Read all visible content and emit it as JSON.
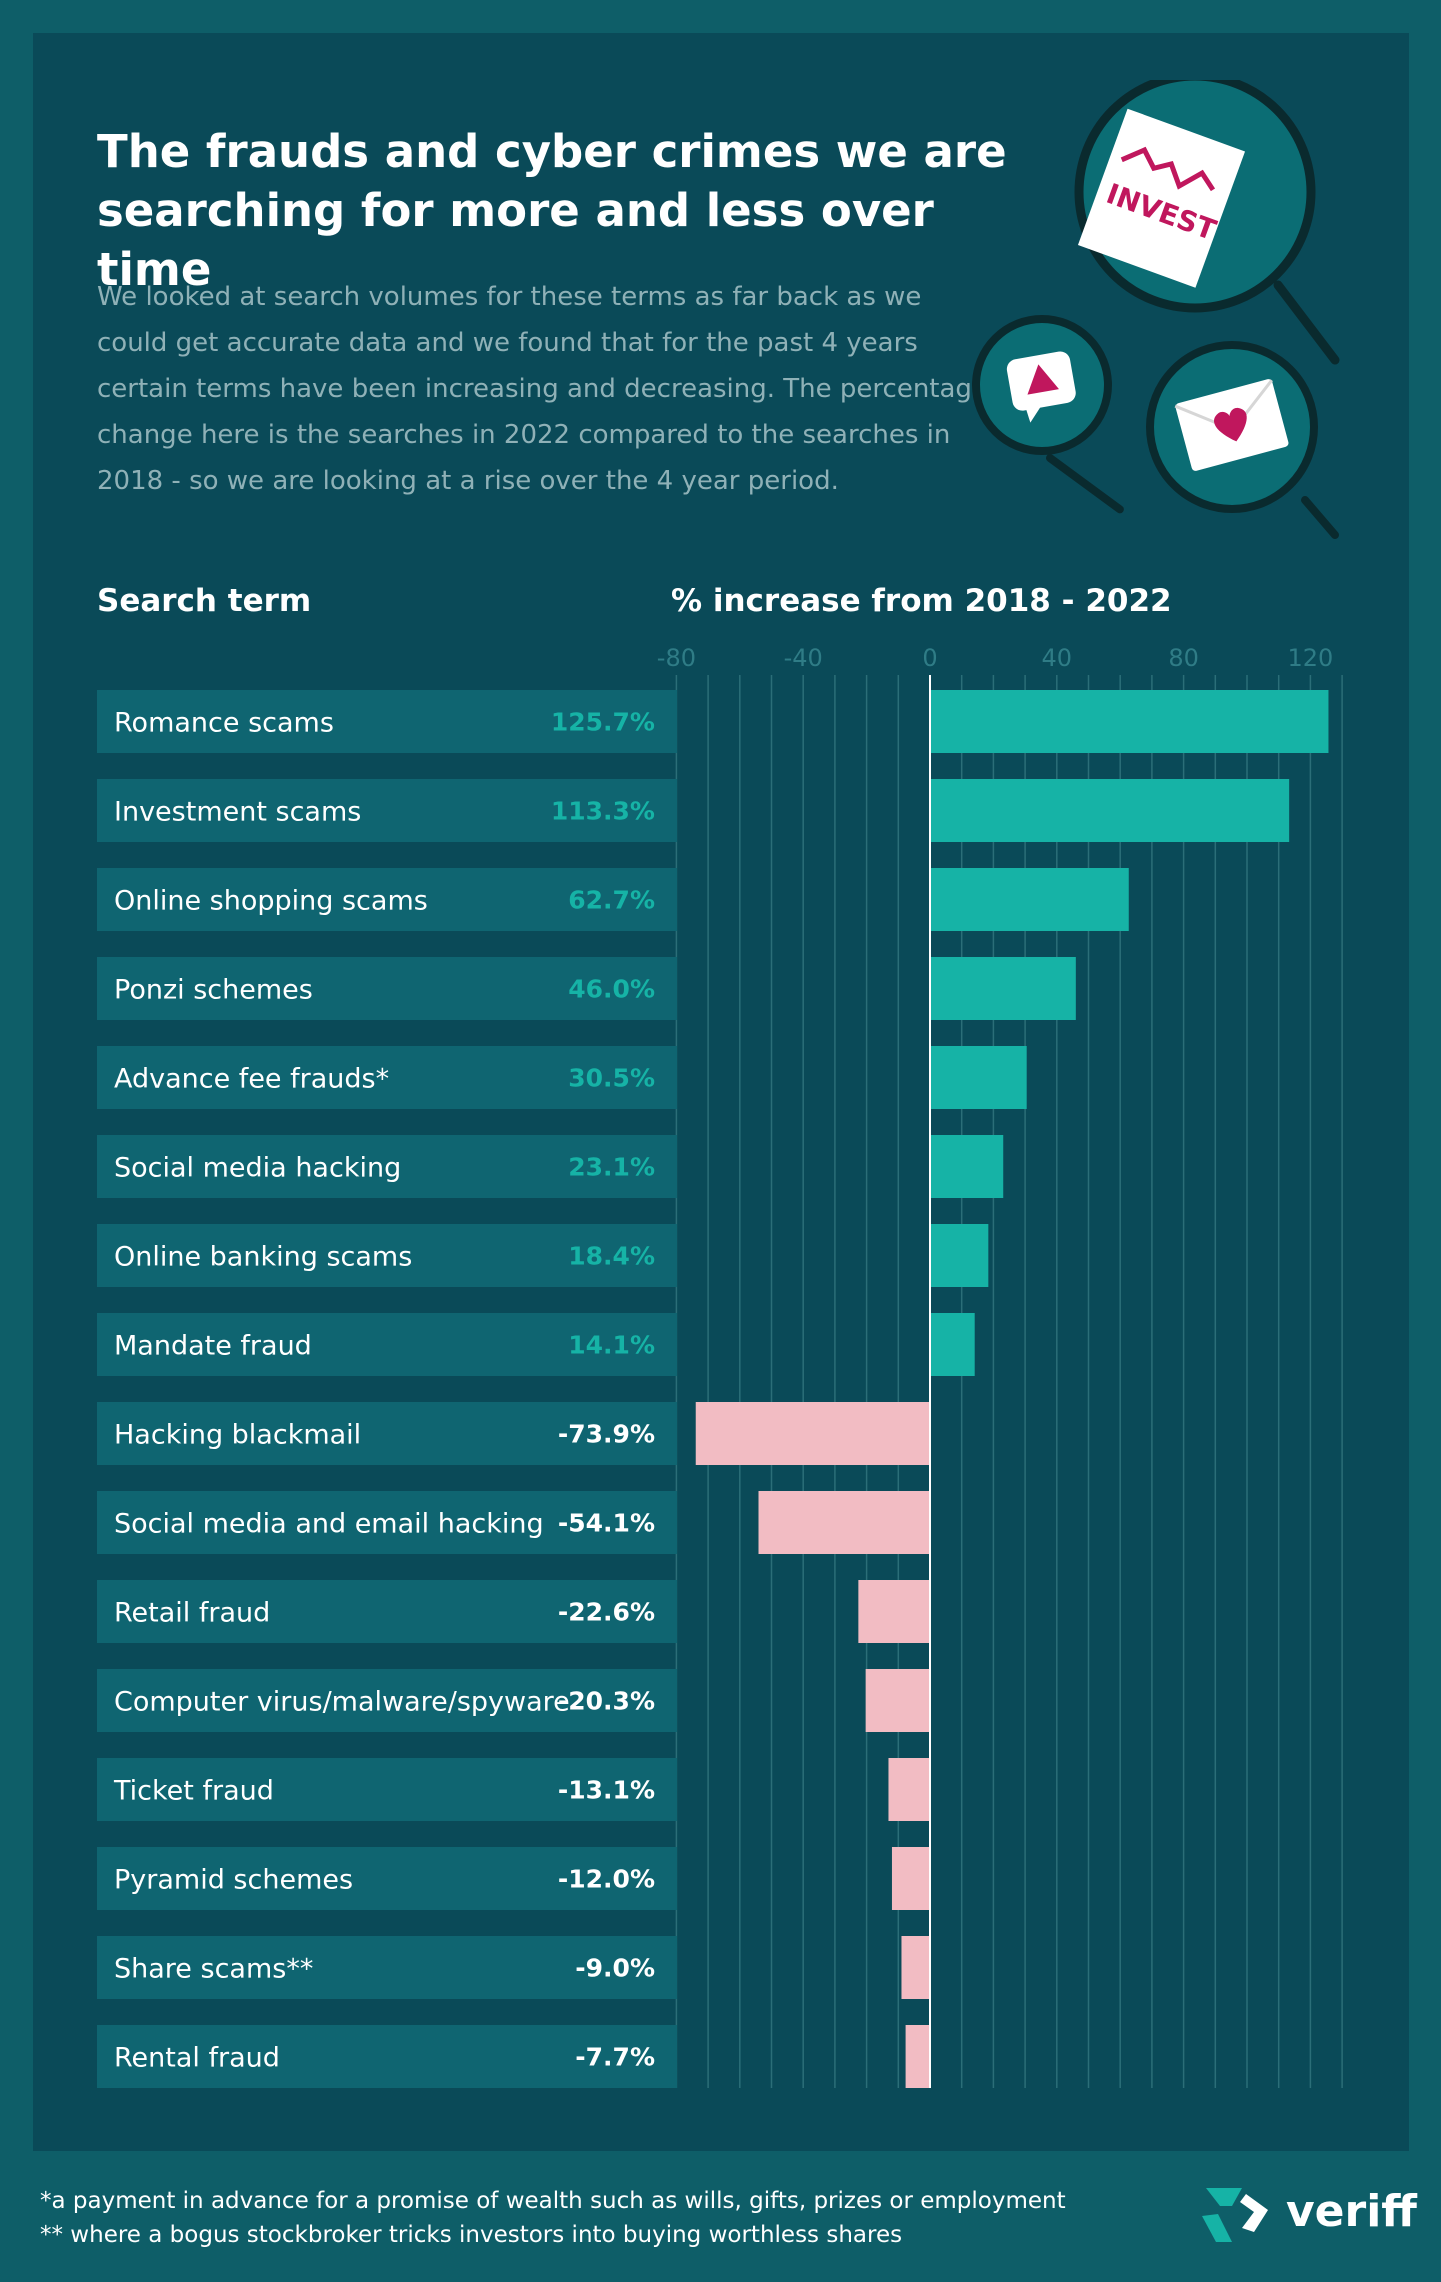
{
  "title": "The frauds and cyber crimes we are searching for more and less over time",
  "intro": "We looked at search volumes for these terms as far back as we could get accurate data and we found that for the past 4 years certain terms have been increasing and decreasing. The percentage change here is the searches in 2022 compared to the searches in 2018 - so we are looking at a rise over the 4 year period.",
  "headers": {
    "term": "Search term",
    "change": "% increase from 2018 - 2022"
  },
  "illustration": {
    "invest_label": "INVEST",
    "icons": [
      "invest-document-icon",
      "alert-chat-icon",
      "heart-envelope-icon",
      "magnifier-icon"
    ]
  },
  "chart_data": {
    "type": "bar",
    "orientation": "horizontal",
    "categories": [
      "Romance scams",
      "Investment scams",
      "Online shopping scams",
      "Ponzi schemes",
      "Advance fee frauds*",
      "Social media hacking",
      "Online banking scams",
      "Mandate fraud",
      "Hacking blackmail",
      "Social media and email hacking",
      "Retail fraud",
      "Computer virus/malware/spyware",
      "Ticket fraud",
      "Pyramid schemes",
      "Share scams**",
      "Rental fraud"
    ],
    "values": [
      125.7,
      113.3,
      62.7,
      46.0,
      30.5,
      23.1,
      18.4,
      14.1,
      -73.9,
      -54.1,
      -22.6,
      -20.3,
      -13.1,
      -12.0,
      -9.0,
      -7.7
    ],
    "value_labels": [
      "125.7%",
      "113.3%",
      "62.7%",
      "46.0%",
      "30.5%",
      "23.1%",
      "18.4%",
      "14.1%",
      "-73.9%",
      "-54.1%",
      "-22.6%",
      "-20.3%",
      "-13.1%",
      "-12.0%",
      "-9.0%",
      "-7.7%"
    ],
    "xlim": [
      -80,
      130
    ],
    "xticks": [
      "-80",
      "-40",
      "0",
      "40",
      "80",
      "120"
    ],
    "xtick_values": [
      -80,
      -40,
      0,
      40,
      80,
      120
    ],
    "grid": true,
    "colors": {
      "positive": "#16b3a6",
      "negative": "#f2bcc3",
      "row_bg": "#0f6571",
      "panel": "#0a4a58"
    }
  },
  "footnotes": [
    "*a payment in advance for a promise of wealth such as wills, gifts, prizes or employment",
    "** where a bogus stockbroker tricks investors into buying worthless shares"
  ],
  "brand": {
    "name": "veriff",
    "logo_icon": "veriff-logo-icon"
  }
}
